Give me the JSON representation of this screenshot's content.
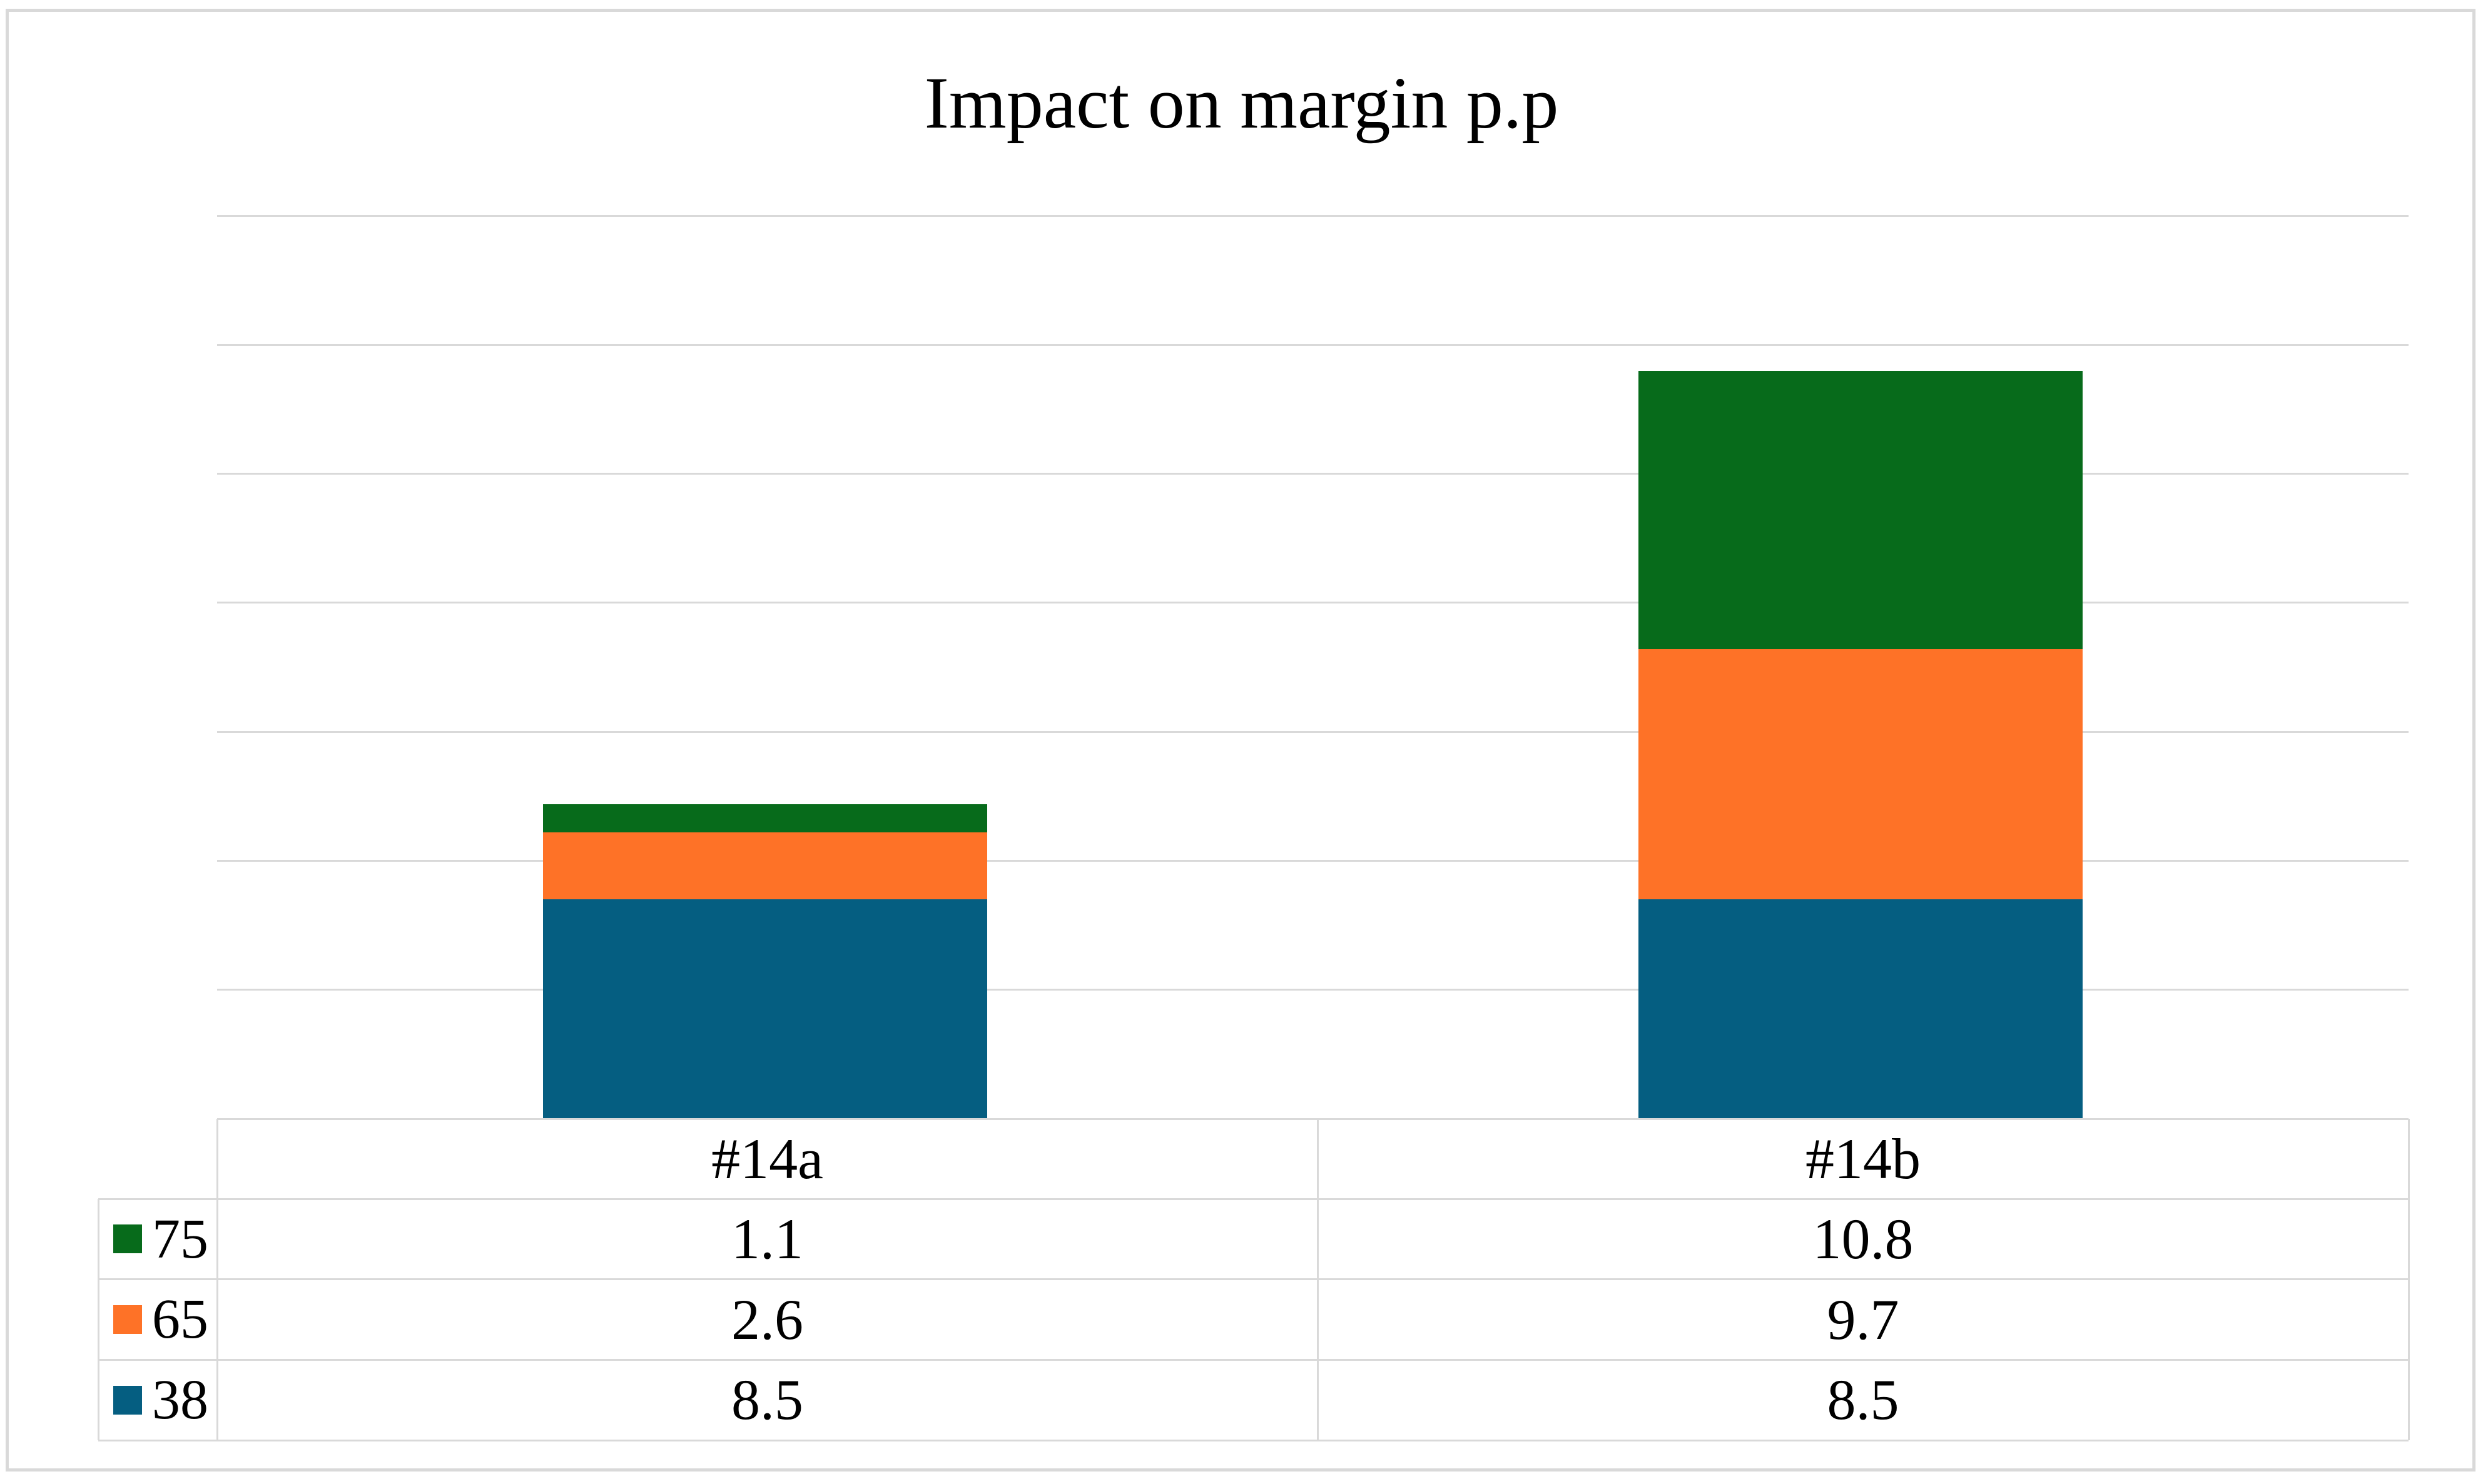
{
  "title": "Impact on margin p.p",
  "chart_data": {
    "type": "bar",
    "stacked": true,
    "title": "Impact on margin p.p",
    "xlabel": "",
    "ylabel": "",
    "categories": [
      "#14a",
      "#14b"
    ],
    "series": [
      {
        "name": "75",
        "color": "#076B1B",
        "values": [
          1.1,
          10.8
        ]
      },
      {
        "name": "65",
        "color": "#FE7227",
        "values": [
          2.6,
          9.7
        ]
      },
      {
        "name": "38",
        "color": "#055E81",
        "values": [
          8.5,
          8.5
        ]
      }
    ],
    "stack_order_bottom_to_top": [
      "38",
      "65",
      "75"
    ],
    "totals": [
      12.2,
      29.0
    ],
    "ylim": [
      0,
      35
    ],
    "gridline_step": 5,
    "grid": "horizontal",
    "y_tick_labels_visible": false,
    "legend_position": "data-table-left-keys",
    "data_table_visible": true
  },
  "colors": {
    "background": "#FFFFFF",
    "frame_border": "#D9D9D9",
    "grid": "#D9D9D9",
    "table_border": "#D9D9D9",
    "text": "#000000"
  }
}
